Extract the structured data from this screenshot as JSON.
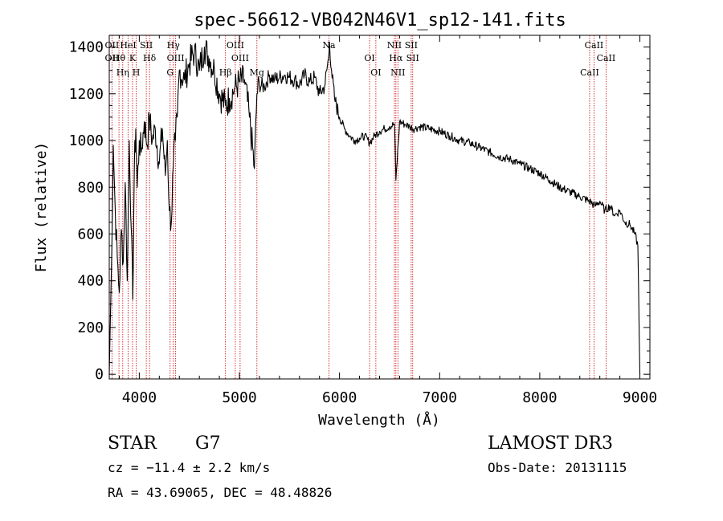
{
  "chart_data": {
    "type": "line",
    "title": "spec-56612-VB042N46V1_sp12-141.fits",
    "xlabel": "Wavelength (Å)",
    "ylabel": "Flux (relative)",
    "xlim": [
      3700,
      9100
    ],
    "ylim": [
      -20,
      1450
    ],
    "x_ticks": [
      4000,
      5000,
      6000,
      7000,
      8000,
      9000
    ],
    "y_ticks": [
      0,
      200,
      400,
      600,
      800,
      1000,
      1200,
      1400
    ],
    "grid": false,
    "series": [
      {
        "x": [
          3700,
          3720,
          3740,
          3760,
          3780,
          3800,
          3820,
          3840,
          3860,
          3880,
          3900,
          3920,
          3935,
          3950,
          3965,
          3980,
          4000,
          4020,
          4050,
          4080,
          4100,
          4130,
          4160,
          4200,
          4230,
          4260,
          4280,
          4300,
          4320,
          4340,
          4360,
          4380,
          4400,
          4450,
          4500,
          4550,
          4600,
          4650,
          4700,
          4750,
          4800,
          4861,
          4900,
          4950,
          5000,
          5050,
          5100,
          5150,
          5175,
          5200,
          5250,
          5300,
          5350,
          5400,
          5450,
          5500,
          5550,
          5600,
          5650,
          5700,
          5750,
          5800,
          5850,
          5890,
          5900,
          5920,
          5950,
          6000,
          6050,
          6100,
          6150,
          6200,
          6250,
          6300,
          6350,
          6400,
          6450,
          6500,
          6550,
          6563,
          6600,
          6650,
          6700,
          6750,
          6800,
          6900,
          7000,
          7100,
          7200,
          7300,
          7400,
          7500,
          7600,
          7700,
          7800,
          7900,
          8000,
          8100,
          8200,
          8300,
          8400,
          8500,
          8550,
          8600,
          8650,
          8700,
          8750,
          8800,
          8850,
          8900,
          8950,
          8980,
          9000
        ],
        "values": [
          0,
          420,
          980,
          700,
          500,
          350,
          620,
          480,
          820,
          400,
          1000,
          620,
          320,
          880,
          1050,
          800,
          1000,
          950,
          1080,
          980,
          1100,
          1000,
          1050,
          900,
          1050,
          850,
          1000,
          700,
          650,
          900,
          1000,
          1100,
          1300,
          1260,
          1330,
          1380,
          1300,
          1400,
          1350,
          1300,
          1200,
          1150,
          1180,
          1220,
          1250,
          1260,
          1100,
          880,
          1200,
          1240,
          1230,
          1280,
          1260,
          1270,
          1280,
          1270,
          1260,
          1240,
          1280,
          1250,
          1270,
          1200,
          1230,
          1350,
          1420,
          1300,
          1180,
          1100,
          1050,
          1020,
          1000,
          1010,
          1020,
          990,
          1020,
          1040,
          1050,
          1060,
          1070,
          830,
          1080,
          1070,
          1060,
          1050,
          1060,
          1050,
          1040,
          1020,
          1000,
          990,
          970,
          950,
          930,
          920,
          900,
          880,
          860,
          830,
          800,
          780,
          760,
          740,
          720,
          740,
          700,
          720,
          680,
          700,
          650,
          640,
          600,
          550,
          0
        ]
      }
    ],
    "line_markers": [
      {
        "x": 3727,
        "labels": [
          "OII",
          "OII"
        ]
      },
      {
        "x": 3797,
        "labels": [
          "Hθ"
        ]
      },
      {
        "x": 3835,
        "labels": [
          "Hη"
        ]
      },
      {
        "x": 3889,
        "labels": [
          "HeI"
        ]
      },
      {
        "x": 3933,
        "labels": [
          "K"
        ]
      },
      {
        "x": 3969,
        "labels": [
          "H"
        ]
      },
      {
        "x": 4070,
        "labels": [
          "SII"
        ]
      },
      {
        "x": 4102,
        "labels": [
          "Hδ"
        ]
      },
      {
        "x": 4308,
        "labels": [
          "G"
        ]
      },
      {
        "x": 4340,
        "labels": [
          "Hγ"
        ]
      },
      {
        "x": 4363,
        "labels": [
          "OIII"
        ]
      },
      {
        "x": 4861,
        "labels": [
          "Hβ"
        ]
      },
      {
        "x": 4959,
        "labels": [
          "OIII"
        ]
      },
      {
        "x": 5007,
        "labels": [
          "OIII"
        ]
      },
      {
        "x": 5175,
        "labels": [
          "Mg"
        ]
      },
      {
        "x": 5894,
        "labels": [
          "Na"
        ]
      },
      {
        "x": 6300,
        "labels": [
          "OI"
        ]
      },
      {
        "x": 6363,
        "labels": [
          "OI"
        ]
      },
      {
        "x": 6548,
        "labels": [
          "NII"
        ]
      },
      {
        "x": 6563,
        "labels": [
          "Hα"
        ]
      },
      {
        "x": 6583,
        "labels": [
          "NII"
        ]
      },
      {
        "x": 6716,
        "labels": [
          "SII"
        ]
      },
      {
        "x": 6731,
        "labels": [
          "SII"
        ]
      },
      {
        "x": 8498,
        "labels": [
          "CaII"
        ]
      },
      {
        "x": 8542,
        "labels": [
          "CaII"
        ]
      },
      {
        "x": 8662,
        "labels": [
          "CaII"
        ]
      }
    ],
    "line_color": "#000000",
    "marker_color": "#cc0000"
  },
  "info": {
    "object_class": "STAR",
    "subclass": "G7",
    "cz": "cz = −11.4 ± 2.2 km/s",
    "coords": "RA =  43.69065, DEC =  48.48826",
    "survey": "LAMOST DR3",
    "obs_date": "Obs-Date: 20131115"
  }
}
